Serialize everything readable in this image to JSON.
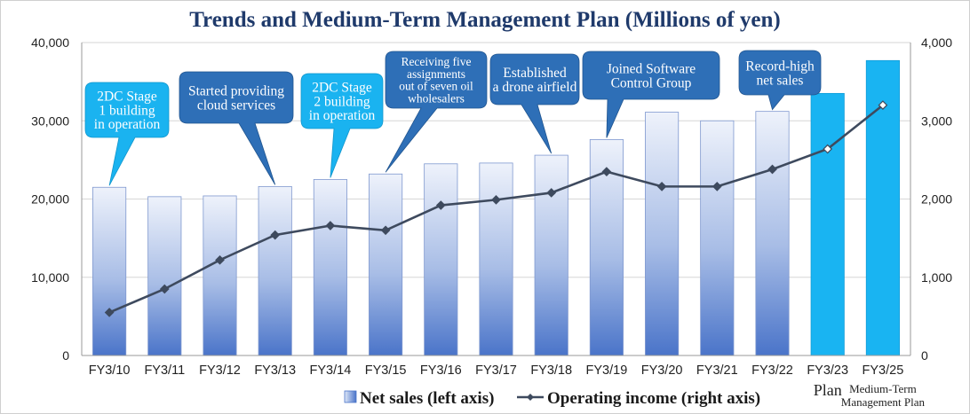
{
  "chart_data": {
    "type": "bar",
    "title": "Trends and Medium-Term Management Plan (Millions of yen)",
    "categories": [
      "FY3/10",
      "FY3/11",
      "FY3/12",
      "FY3/13",
      "FY3/14",
      "FY3/15",
      "FY3/16",
      "FY3/17",
      "FY3/18",
      "FY3/19",
      "FY3/20",
      "FY3/21",
      "FY3/22",
      "FY3/23",
      "FY3/25"
    ],
    "category_sublabels": [
      "",
      "",
      "",
      "",
      "",
      "",
      "",
      "",
      "",
      "",
      "",
      "",
      "",
      "Plan",
      "Medium-Term Management Plan"
    ],
    "series": [
      {
        "name": "Net sales (left axis)",
        "type": "bar",
        "axis": "left",
        "values": [
          21500,
          20300,
          20400,
          21600,
          22500,
          23200,
          24500,
          24600,
          25600,
          27600,
          31100,
          30000,
          31200,
          33500,
          37700
        ],
        "color": "#4a74c9",
        "plan_color": "#19b4f2"
      },
      {
        "name": "Operating income (right axis)",
        "type": "line",
        "axis": "right",
        "values": [
          550,
          850,
          1220,
          1540,
          1660,
          1600,
          1920,
          1990,
          2080,
          2350,
          2160,
          2160,
          2380,
          2640,
          3200
        ],
        "color": "#3e4a5e"
      }
    ],
    "ylim_left": [
      0,
      40000
    ],
    "yticks_left": [
      "0",
      "10,000",
      "20,000",
      "30,000",
      "40,000"
    ],
    "ylim_right": [
      0,
      4000
    ],
    "yticks_right": [
      "0",
      "1,000",
      "2,000",
      "3,000",
      "4,000"
    ],
    "plan_categories": [
      "FY3/23",
      "FY3/25"
    ],
    "legend_position": "bottom",
    "annotations": [
      {
        "category": "FY3/10",
        "lines": [
          "2DC Stage",
          "1 building",
          "in operation"
        ],
        "style": "light"
      },
      {
        "category": "FY3/13",
        "lines": [
          "Started providing",
          "cloud services"
        ],
        "style": "dark"
      },
      {
        "category": "FY3/14",
        "lines": [
          "2DC Stage",
          "2 building",
          "in operation"
        ],
        "style": "light"
      },
      {
        "category": "FY3/15",
        "lines": [
          "Receiving five",
          "assignments",
          "out of seven oil",
          "wholesalers"
        ],
        "style": "dark"
      },
      {
        "category": "FY3/18",
        "lines": [
          "Established",
          "a drone airfield"
        ],
        "style": "dark"
      },
      {
        "category": "FY3/19",
        "lines": [
          "Joined Software",
          "Control Group"
        ],
        "style": "dark"
      },
      {
        "category": "FY3/22",
        "lines": [
          "Record-high",
          "net sales"
        ],
        "style": "dark"
      }
    ]
  },
  "colors": {
    "title": "#1f3a6b",
    "callout_dark": "#2e6fb7",
    "callout_light": "#1ab3f0",
    "grid": "#d6d6d6"
  }
}
